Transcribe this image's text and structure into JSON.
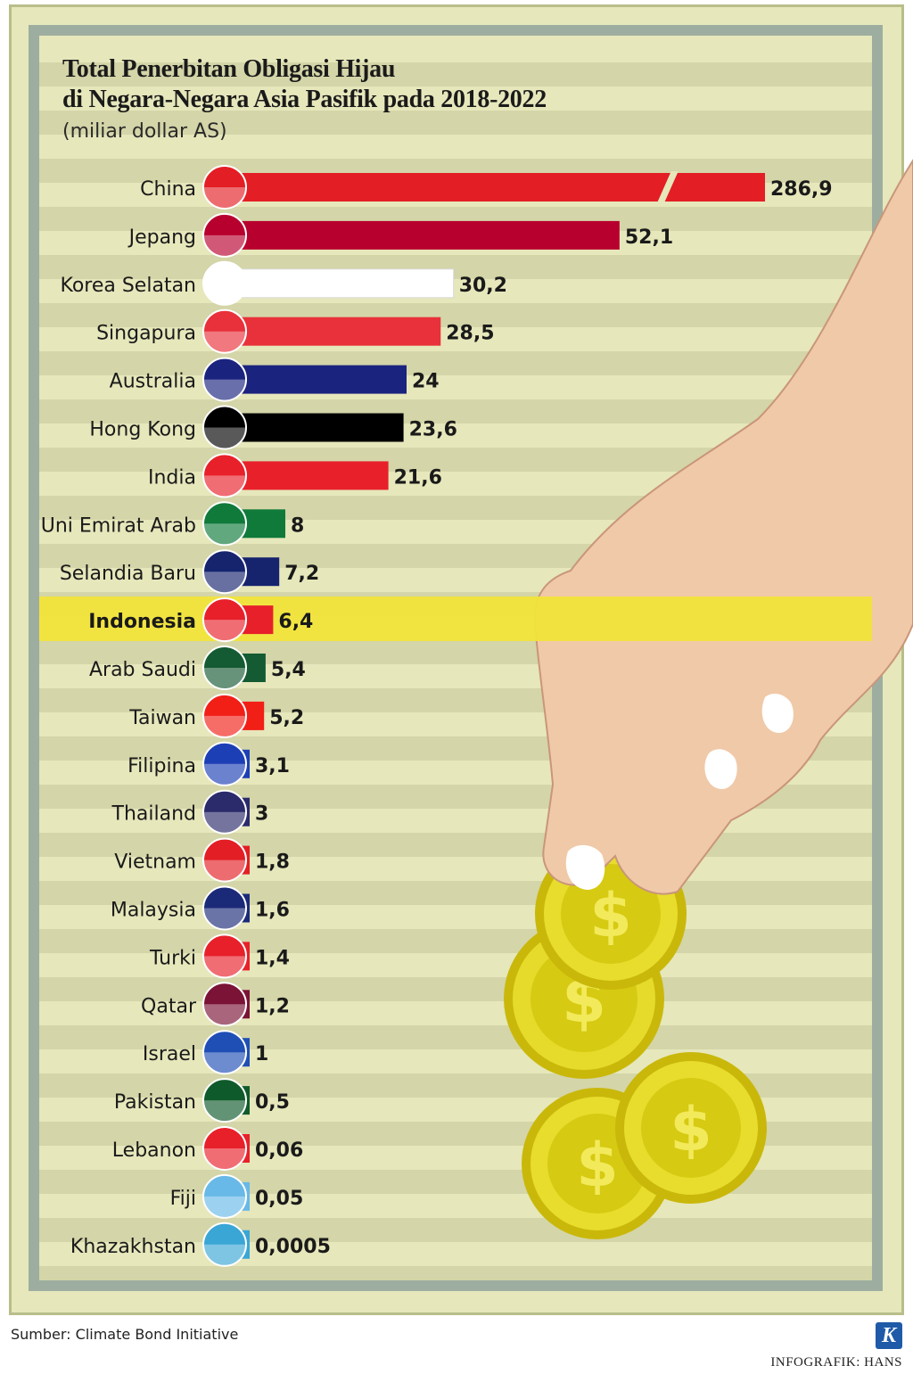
{
  "title_line1": "Total Penerbitan Obligasi Hijau",
  "title_line2": "di Negara-Negara Asia Pasifik pada 2018-2022",
  "unit": "(miliar dollar AS)",
  "source": "Sumber: Climate Bond Initiative",
  "credit": "INFOGRAFIK: HANS",
  "logo_letter": "K",
  "colors": {
    "background": "#e6e7bb",
    "highlight": "#f1e43a"
  },
  "chart_data": {
    "type": "bar",
    "orientation": "horizontal",
    "axis_break": true,
    "highlight": "Indonesia",
    "categories": [
      "China",
      "Jepang",
      "Korea Selatan",
      "Singapura",
      "Australia",
      "Hong Kong",
      "India",
      "Uni Emirat Arab",
      "Selandia Baru",
      "Indonesia",
      "Arab Saudi",
      "Taiwan",
      "Filipina",
      "Thailand",
      "Vietnam",
      "Malaysia",
      "Turki",
      "Qatar",
      "Israel",
      "Pakistan",
      "Lebanon",
      "Fiji",
      "Khazakhstan"
    ],
    "values": [
      286.9,
      52.1,
      30.2,
      28.5,
      24,
      23.6,
      21.6,
      8,
      7.2,
      6.4,
      5.4,
      5.2,
      3.1,
      3,
      1.8,
      1.6,
      1.4,
      1.2,
      1,
      0.5,
      0.06,
      0.05,
      0.0005
    ],
    "value_labels": [
      "286,9",
      "52,1",
      "30,2",
      "28,5",
      "24",
      "23,6",
      "21,6",
      "8",
      "7,2",
      "6,4",
      "5,4",
      "5,2",
      "3,1",
      "3",
      "1,8",
      "1,6",
      "1,4",
      "1,2",
      "1",
      "0,5",
      "0,06",
      "0,05",
      "0,0005"
    ],
    "bar_colors": [
      "#e31e24",
      "#b8002e",
      "#ffffff",
      "#e8313a",
      "#1a237e",
      "#000000",
      "#e8202a",
      "#0f7a3a",
      "#16246e",
      "#e8202a",
      "#145a32",
      "#f21f17",
      "#1c3fb5",
      "#2b2a6b",
      "#e31e24",
      "#1b2a78",
      "#e8202a",
      "#7a1335",
      "#1f4fb5",
      "#0f5a2a",
      "#e8202a",
      "#68b9e8",
      "#3aa6d6"
    ]
  }
}
